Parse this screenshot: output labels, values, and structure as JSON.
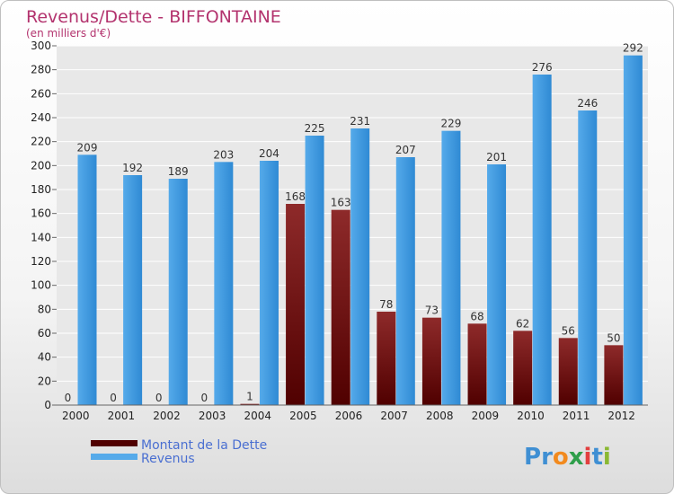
{
  "header": {
    "title": "Revenus/Dette - BIFFONTAINE",
    "subtitle": "(en milliers d'€)"
  },
  "logo": {
    "text": "Proxiti",
    "letters": [
      "P",
      "r",
      "o",
      "x",
      "i",
      "t",
      "i"
    ],
    "colors": [
      "#3f8fd3",
      "#3f8fd3",
      "#f28a1e",
      "#2e9e4a",
      "#e23f3f",
      "#3f8fd3",
      "#8ab832"
    ]
  },
  "colors": {
    "debt_top": "#8e2a2a",
    "debt_bottom": "#500000",
    "revenue_top": "#55aaea",
    "revenue_bottom": "#2f8ad4",
    "grid": "#ffffff",
    "plot_bg": "#e8e8e8"
  },
  "chart_data": {
    "type": "bar",
    "title": "Revenus/Dette - BIFFONTAINE",
    "subtitle": "(en milliers d'€)",
    "categories": [
      "2000",
      "2001",
      "2002",
      "2003",
      "2004",
      "2005",
      "2006",
      "2007",
      "2008",
      "2009",
      "2010",
      "2011",
      "2012"
    ],
    "series": [
      {
        "name": "Montant de la Dette",
        "values": [
          0,
          0,
          0,
          0,
          1,
          168,
          163,
          78,
          73,
          68,
          62,
          56,
          50
        ]
      },
      {
        "name": "Revenus",
        "values": [
          209,
          192,
          189,
          203,
          204,
          225,
          231,
          207,
          229,
          201,
          276,
          246,
          292
        ]
      }
    ],
    "ylim": [
      0,
      300
    ],
    "yticks": [
      0,
      20,
      40,
      60,
      80,
      100,
      120,
      140,
      160,
      180,
      200,
      220,
      240,
      260,
      280,
      300
    ],
    "grid": true,
    "legend_position": "bottom-left"
  }
}
